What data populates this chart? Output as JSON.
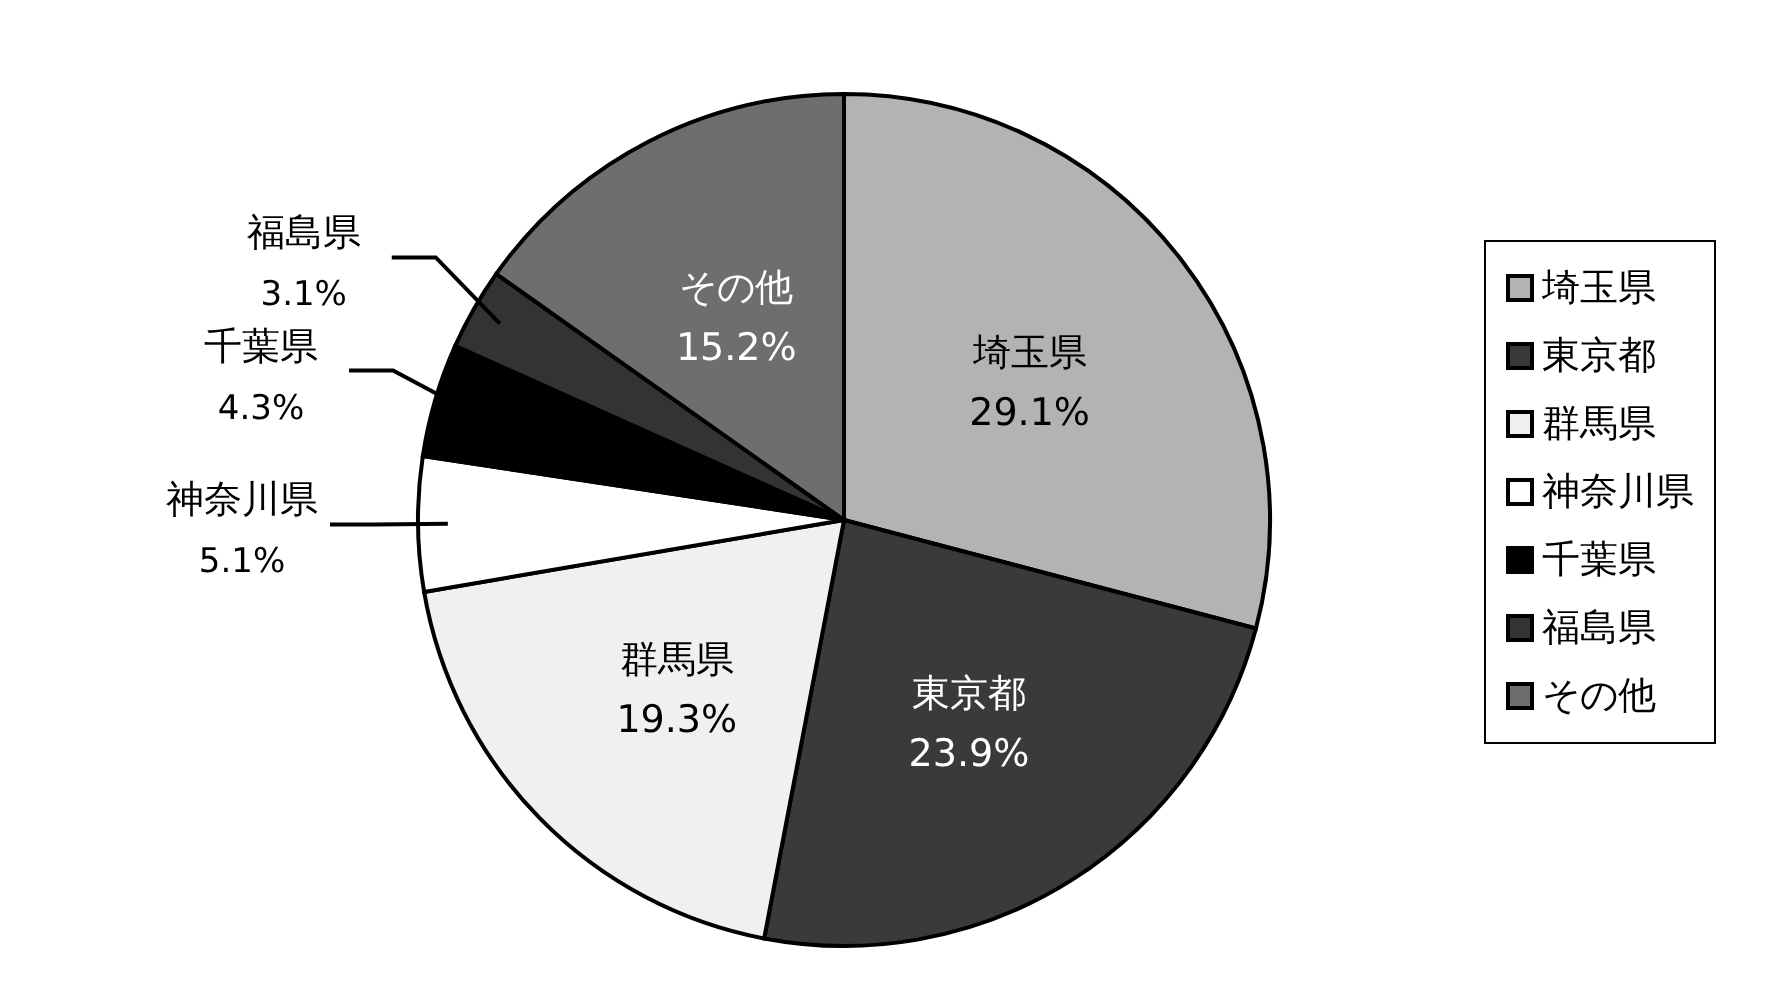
{
  "chart_data": {
    "type": "pie",
    "categories": [
      "埼玉県",
      "東京都",
      "群馬県",
      "神奈川県",
      "千葉県",
      "福島県",
      "その他"
    ],
    "values": [
      29.1,
      23.9,
      19.3,
      5.1,
      4.3,
      3.1,
      15.2
    ],
    "colors": [
      "#b3b3b3",
      "#3a3a3a",
      "#f0f0f0",
      "#ffffff",
      "#000000",
      "#333333",
      "#6e6e6e"
    ],
    "value_labels": [
      "29.1%",
      "23.9%",
      "19.3%",
      "5.1%",
      "4.3%",
      "3.1%",
      "15.2%"
    ],
    "legend": "right"
  }
}
